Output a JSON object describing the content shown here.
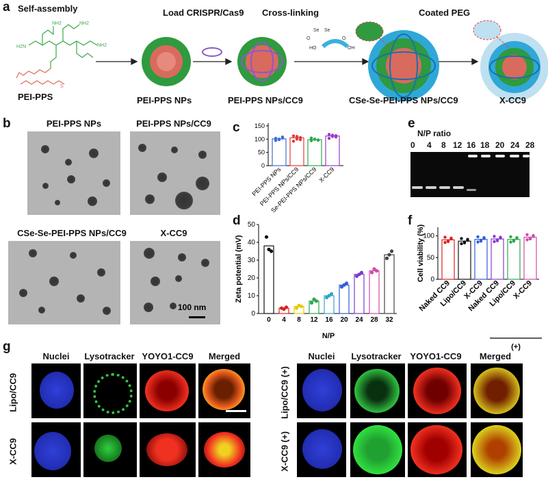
{
  "panels": {
    "a": "a",
    "b": "b",
    "c": "c",
    "d": "d",
    "e": "e",
    "f": "f",
    "g": "g"
  },
  "panel_a": {
    "steps": [
      "Self-assembly",
      "Load CRISPR/Cas9",
      "Cross-linking",
      "Coated PEG"
    ],
    "labels": [
      "PEI-PPS",
      "PEI-PPS NPs",
      "PEI-PPS NPs/CC9",
      "CSe-Se-PEI-PPS NPs/CC9",
      "X-CC9"
    ],
    "chem": {
      "nh2": "NH2",
      "h2n": "H2N",
      "nh": "N",
      "s": "S",
      "se": "Se",
      "o": "O",
      "ho": "HO",
      "oh": "OH"
    }
  },
  "panel_b": {
    "titles": [
      "PEI-PPS NPs",
      "PEI-PPS NPs/CC9",
      "CSe-Se-PEI-PPS NPs/CC9",
      "X-CC9"
    ],
    "scalebar": "100 nm"
  },
  "panel_e": {
    "title": "N/P ratio",
    "lanes": [
      "0",
      "4",
      "8",
      "12",
      "16",
      "18",
      "20",
      "24",
      "28"
    ]
  },
  "panel_g": {
    "columns": [
      "Nuclei",
      "Lysotracker",
      "YOYO1-CC9",
      "Merged"
    ],
    "rows_left": [
      "Lipo/CC9",
      "X-CC9"
    ],
    "rows_right": [
      "Lipo/CC9 (+)",
      "X-CC9 (+)"
    ]
  },
  "chart_data": [
    {
      "type": "bar",
      "panel": "c",
      "categories": [
        "PEI-PPS NPs",
        "PEI-PPS NPs/CC9",
        "CSe-Se-PEI-PPS NPs/CC9",
        "X-CC9"
      ],
      "values": [
        101,
        105,
        98,
        112
      ],
      "points": [
        [
          95,
          100,
          108,
          103,
          98,
          104
        ],
        [
          92,
          110,
          98,
          112,
          100,
          106
        ],
        [
          94,
          100,
          97,
          104,
          99,
          96
        ],
        [
          103,
          115,
          108,
          118,
          110,
          113
        ]
      ],
      "colors": [
        "#3b6fd8",
        "#e23a3a",
        "#2aa84a",
        "#9b3bc4"
      ],
      "yticks": [
        0,
        50,
        100,
        150
      ],
      "ylim": [
        0,
        160
      ],
      "xlabel": "",
      "ylabel": ""
    },
    {
      "type": "bar",
      "panel": "d",
      "categories": [
        "0",
        "4",
        "8",
        "12",
        "16",
        "20",
        "24",
        "28",
        "32"
      ],
      "values": [
        38,
        3,
        4,
        7,
        10,
        16,
        22,
        24,
        33
      ],
      "points": [
        [
          43,
          36,
          35
        ],
        [
          3,
          2.5,
          3.5
        ],
        [
          3,
          4.5,
          4
        ],
        [
          6,
          8,
          7
        ],
        [
          9,
          10,
          11
        ],
        [
          15,
          16,
          17
        ],
        [
          21,
          22,
          23
        ],
        [
          23,
          25,
          24
        ],
        [
          31,
          33,
          35
        ]
      ],
      "colors": [
        "#111111",
        "#e02020",
        "#e8c800",
        "#2aa84a",
        "#2fa6c8",
        "#2f5ed8",
        "#7a3ad0",
        "#d04aa8",
        "#444444"
      ],
      "yticks": [
        0,
        10,
        20,
        30,
        40,
        50
      ],
      "ylim": [
        0,
        50
      ],
      "ylabel": "Zeta potential (mV)",
      "xlabel": "N/P"
    },
    {
      "type": "bar",
      "panel": "f",
      "categories": [
        "Naked CC9",
        "Lipo/CC9",
        "X-CC9",
        "Naked CC9",
        "Lipo/CC9",
        "X-CC9"
      ],
      "values": [
        91,
        88,
        92,
        93,
        92,
        97
      ],
      "colors": [
        "#e02020",
        "#111111",
        "#2f5ed8",
        "#8a3ad0",
        "#2aa84a",
        "#d04aa8"
      ],
      "yticks": [
        0,
        50,
        100
      ],
      "ylim": [
        0,
        120
      ],
      "ylabel": "Cell viability (%)",
      "group_label": "(+)"
    }
  ]
}
